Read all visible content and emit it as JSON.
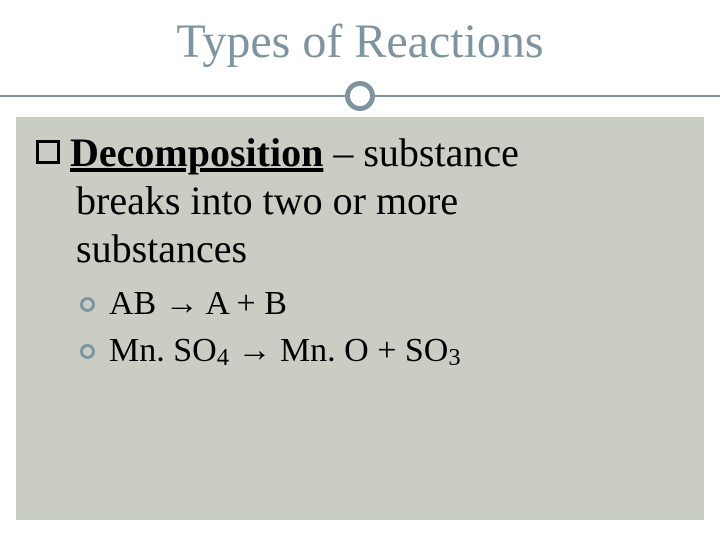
{
  "colors": {
    "accent": "#7e95a1",
    "content_bg": "#c9cdc4",
    "text": "#000000",
    "page_bg": "#ffffff"
  },
  "typography": {
    "title_fontsize": 48,
    "body_fontsize": 40,
    "sub_fontsize": 34,
    "font_family": "Georgia, Times New Roman, serif"
  },
  "title": "Types of Reactions",
  "main": {
    "term": "Decomposition",
    "definition_line1": " – substance",
    "definition_line2": "breaks into two or more",
    "definition_line3": "substances"
  },
  "sub_items": [
    {
      "text": "AB → A + B"
    },
    {
      "text_html": "Mn. SO<sub>4</sub> → Mn. O + SO<sub>3</sub>"
    }
  ]
}
